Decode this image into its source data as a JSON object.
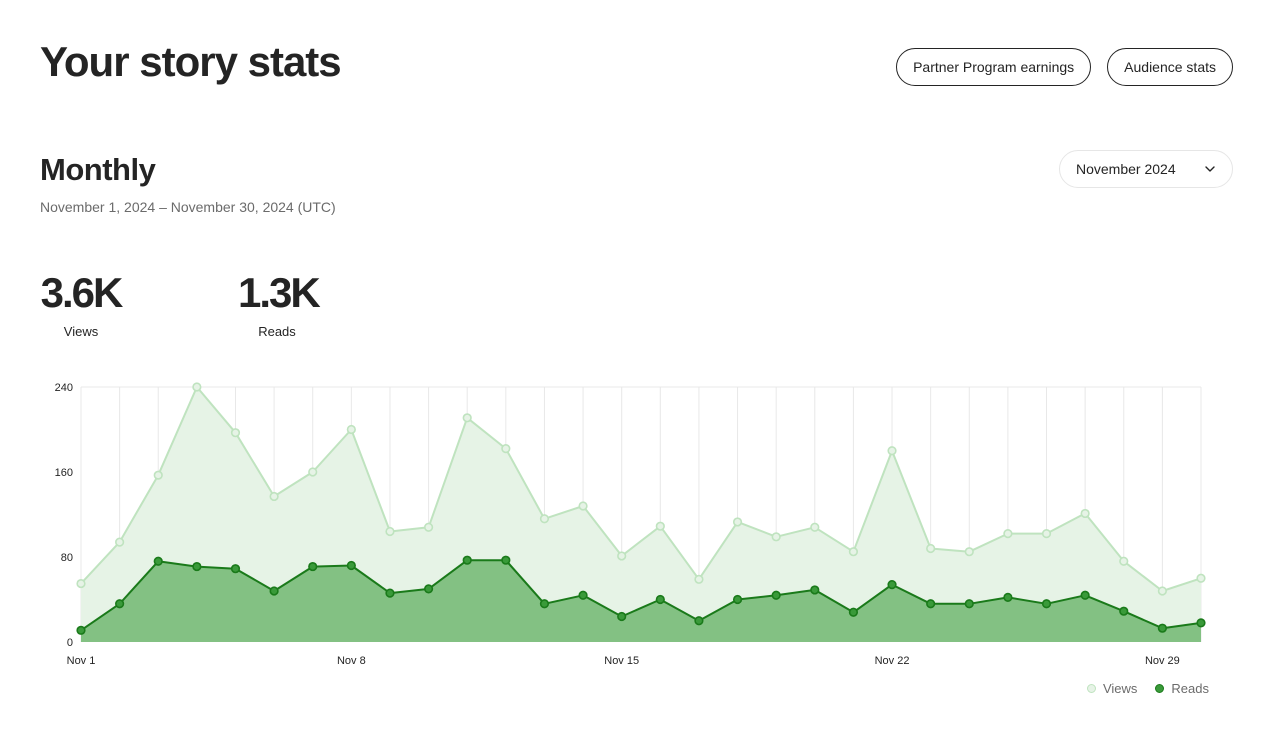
{
  "header": {
    "title": "Your story stats",
    "partner_button": "Partner Program earnings",
    "audience_button": "Audience stats"
  },
  "section": {
    "title": "Monthly",
    "date_range": "November 1, 2024 – November 30, 2024 (UTC)",
    "month_select": "November 2024",
    "chevron_icon": "chevron-down-icon"
  },
  "stats": {
    "views_value": "3.6K",
    "views_label": "Views",
    "reads_value": "1.3K",
    "reads_label": "Reads"
  },
  "colors": {
    "views_line": "#bfe3bf",
    "views_fill": "#e6f3e6",
    "reads_line": "#1a7a1a",
    "reads_fill": "#83c183",
    "reads_marker": "#3a9a3a"
  },
  "chart_data": {
    "type": "area",
    "x": [
      "Nov 1",
      "Nov 2",
      "Nov 3",
      "Nov 4",
      "Nov 5",
      "Nov 6",
      "Nov 7",
      "Nov 8",
      "Nov 9",
      "Nov 10",
      "Nov 11",
      "Nov 12",
      "Nov 13",
      "Nov 14",
      "Nov 15",
      "Nov 16",
      "Nov 17",
      "Nov 18",
      "Nov 19",
      "Nov 20",
      "Nov 21",
      "Nov 22",
      "Nov 23",
      "Nov 24",
      "Nov 25",
      "Nov 26",
      "Nov 27",
      "Nov 28",
      "Nov 29",
      "Nov 30"
    ],
    "x_tick_labels": [
      "Nov 1",
      "Nov 8",
      "Nov 15",
      "Nov 22",
      "Nov 29"
    ],
    "y_ticks": [
      0,
      80,
      160,
      240
    ],
    "ylim": [
      0,
      240
    ],
    "grid": "vertical",
    "legend_position": "bottom-right",
    "series": [
      {
        "name": "Views",
        "values": [
          55,
          94,
          157,
          240,
          197,
          137,
          160,
          200,
          104,
          108,
          211,
          182,
          116,
          128,
          81,
          109,
          59,
          113,
          99,
          108,
          85,
          180,
          88,
          85,
          102,
          102,
          121,
          76,
          48,
          60
        ]
      },
      {
        "name": "Reads",
        "values": [
          11,
          36,
          76,
          71,
          69,
          48,
          71,
          72,
          46,
          50,
          77,
          77,
          36,
          44,
          24,
          40,
          20,
          40,
          44,
          49,
          28,
          54,
          36,
          36,
          42,
          36,
          44,
          29,
          13,
          18
        ]
      }
    ]
  }
}
